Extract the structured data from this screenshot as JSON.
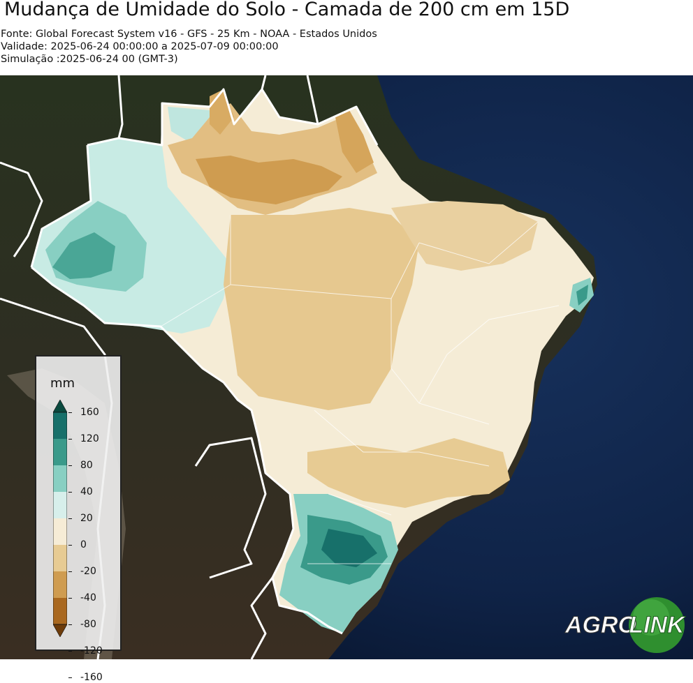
{
  "header": {
    "title": "Mudança de Umidade do Solo - Camada de 200 cm em 15D",
    "source": "Fonte: Global Forecast System v16 - GFS - 25 Km - NOAA - Estados Unidos",
    "validity": "Validade: 2025-06-24 00:00:00 a 2025-07-09 00:00:00",
    "simulation": "Simulação :2025-06-24 00 (GMT-3)"
  },
  "legend": {
    "unit": "mm",
    "ticks": [
      "160",
      "120",
      "80",
      "40",
      "20",
      "0",
      "-20",
      "-40",
      "-80",
      "-120",
      "-160"
    ],
    "colors": [
      "#0b4a3f",
      "#17706a",
      "#3a9a8a",
      "#88cfc2",
      "#d7efeb",
      "#f6ecd6",
      "#e7cb93",
      "#cf9c50",
      "#a9681f",
      "#6e3c0a"
    ]
  },
  "logo": {
    "text_left": "AGRO",
    "text_right": "LINK"
  },
  "colors": {
    "ocean": "#0b1e3c",
    "land": "#2a2f24",
    "border": "#ffffff"
  }
}
